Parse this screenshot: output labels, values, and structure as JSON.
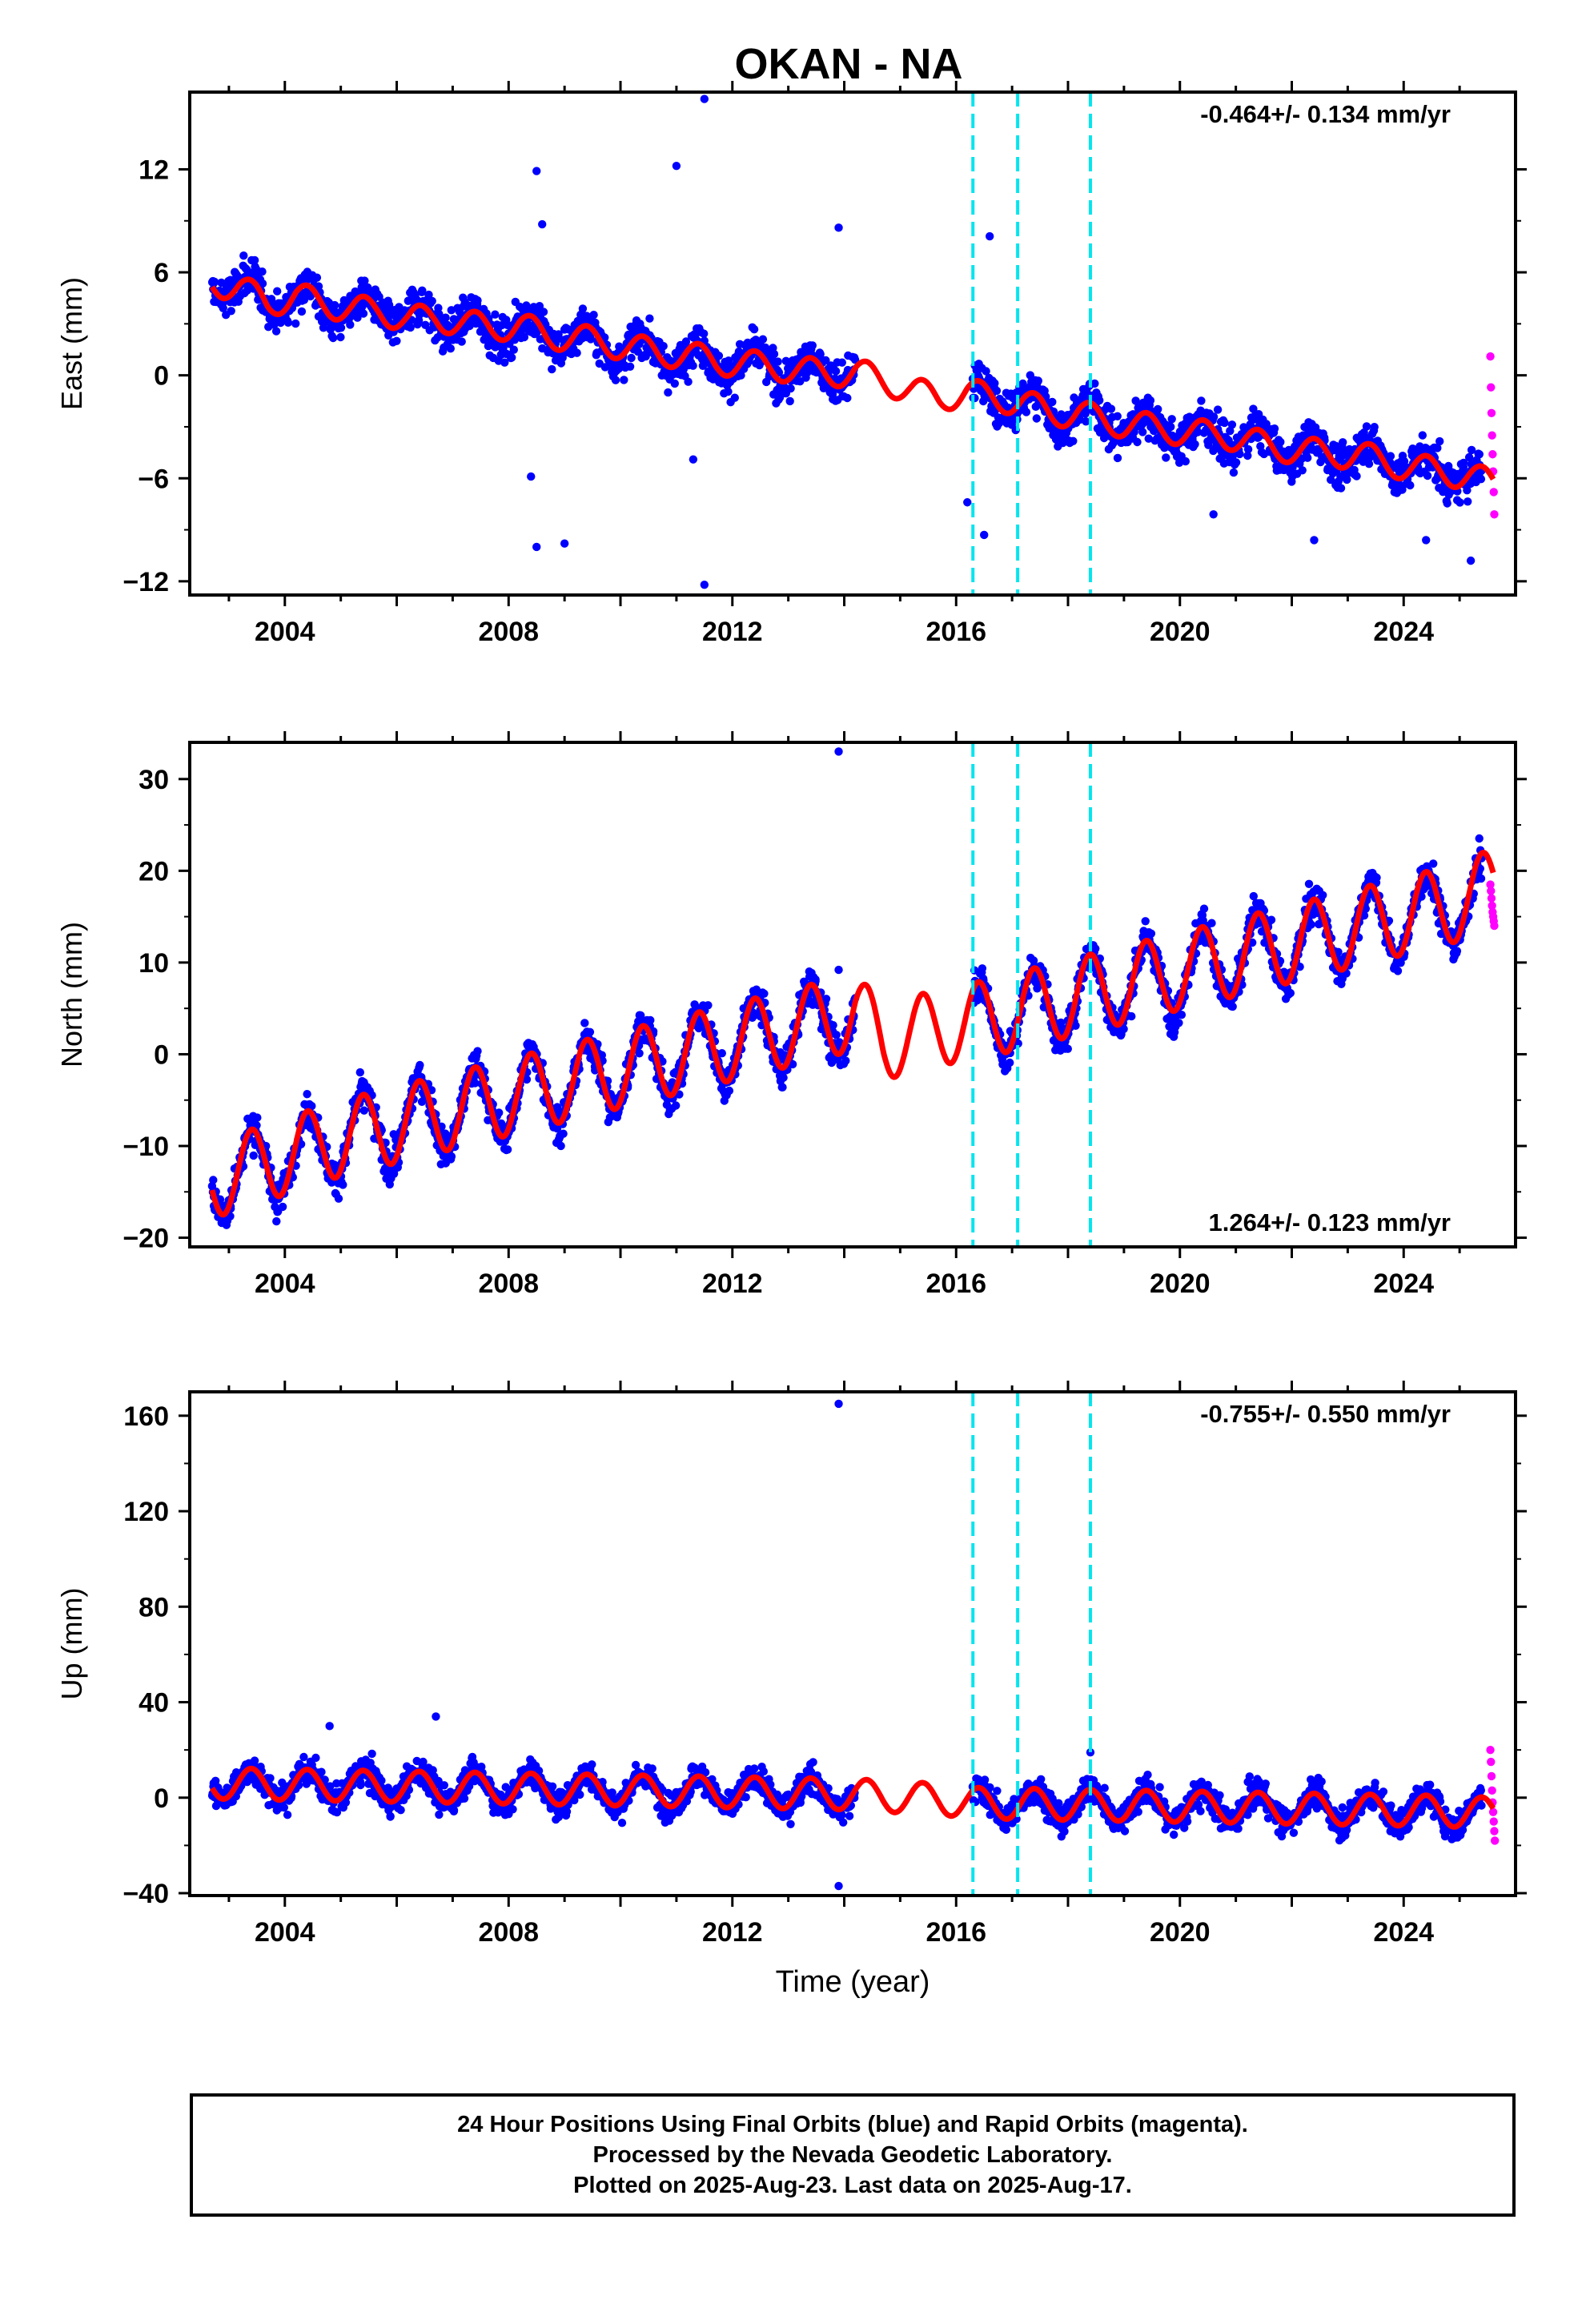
{
  "title": "OKAN - NA",
  "colors": {
    "final": "#0000ff",
    "rapid": "#ff00ff",
    "model": "#ff0000",
    "steps": "#00e5ee"
  },
  "chart_data": [
    {
      "type": "scatter",
      "component": "east",
      "ylabel": "East (mm)",
      "xlabel": "",
      "xlim": [
        2002.3,
        2026.0
      ],
      "ylim": [
        -12.8,
        16.5
      ],
      "yticks": [
        12,
        6,
        0,
        -6,
        -12
      ],
      "yticklabels": [
        "12",
        "6",
        "0",
        "−6",
        "−12"
      ],
      "xticks": [
        2004,
        2008,
        2012,
        2016,
        2020,
        2024
      ],
      "xticklabels": [
        "2004",
        "2008",
        "2012",
        "2016",
        "2020",
        "2024"
      ],
      "rate": "-0.464+/- 0.134 mm/yr",
      "rate_position": "top-right",
      "series": [
        {
          "name": "Final Orbits",
          "color": "#0000ff",
          "segments": [
            {
              "x": [
                2002.7,
                2003.2,
                2003.7,
                2004.2,
                2004.7,
                2005.2,
                2005.7,
                2006.2,
                2006.7,
                2007.2,
                2007.7,
                2008.2,
                2008.7,
                2009.2,
                2009.7,
                2010.2,
                2010.7,
                2011.2,
                2011.7,
                2012.2,
                2012.7,
                2013.2,
                2013.7,
                2014.2
              ],
              "y": [
                5.3,
                5.2,
                4.3,
                4.6,
                4.1,
                3.8,
                3.9,
                3.3,
                3.5,
                3.0,
                2.7,
                2.9,
                2.3,
                2.2,
                1.8,
                1.6,
                1.3,
                1.2,
                0.8,
                0.7,
                0.5,
                0.3,
                0.1,
                0.3
              ],
              "spread": 1.8
            },
            {
              "x": [
                2016.3,
                2016.8,
                2017.3,
                2017.8,
                2018.3,
                2018.8,
                2019.3,
                2019.8,
                2020.3,
                2020.8,
                2021.3,
                2021.8,
                2022.3,
                2022.8,
                2023.3,
                2023.8,
                2024.3,
                2024.8,
                2025.4
              ],
              "y": [
                -1.2,
                -1.3,
                -1.6,
                -2.2,
                -2.2,
                -2.7,
                -2.9,
                -3.1,
                -3.4,
                -3.4,
                -3.8,
                -4.2,
                -4.4,
                -4.6,
                -4.6,
                -5.1,
                -5.4,
                -5.6,
                -5.9
              ],
              "spread": 1.8
            }
          ],
          "outliers": [
            [
              2008.5,
              11.9
            ],
            [
              2008.6,
              8.8
            ],
            [
              2011.0,
              12.2
            ],
            [
              2011.5,
              16.1
            ],
            [
              2008.5,
              -10.0
            ],
            [
              2009.0,
              -9.8
            ],
            [
              2008.4,
              -5.9
            ],
            [
              2011.5,
              -12.2
            ],
            [
              2011.3,
              -4.9
            ],
            [
              2013.9,
              8.6
            ],
            [
              2016.6,
              8.1
            ],
            [
              2016.2,
              -7.4
            ],
            [
              2016.5,
              -9.3
            ],
            [
              2020.6,
              -8.1
            ],
            [
              2022.4,
              -9.6
            ],
            [
              2024.4,
              -9.6
            ],
            [
              2025.2,
              -10.8
            ]
          ]
        },
        {
          "name": "Rapid Orbits",
          "color": "#ff00ff",
          "x": [
            2025.55,
            2025.56,
            2025.57,
            2025.58,
            2025.59,
            2025.6,
            2025.61,
            2025.62
          ],
          "y": [
            1.1,
            -0.7,
            -2.2,
            -3.5,
            -4.6,
            -5.6,
            -6.8,
            -8.1
          ]
        }
      ],
      "model": {
        "x": [
          2002.7,
          2003.2,
          2003.7,
          2004.2,
          2004.7,
          2005.2,
          2005.7,
          2006.2,
          2006.7,
          2007.2,
          2007.7,
          2008.2,
          2008.7,
          2009.2,
          2009.7,
          2010.2,
          2010.7,
          2011.2,
          2011.7,
          2012.2,
          2012.7,
          2013.2,
          2013.7,
          2014.2,
          2014.7,
          2015.2,
          2015.7,
          2016.2,
          2016.7,
          2017.2,
          2017.7,
          2018.2,
          2018.7,
          2019.2,
          2019.7,
          2020.2,
          2020.7,
          2021.2,
          2021.7,
          2022.2,
          2022.7,
          2023.2,
          2023.7,
          2024.2,
          2024.7,
          2025.2,
          2025.6
        ],
        "y": [
          5.4,
          5.1,
          4.2,
          4.6,
          4.2,
          3.8,
          3.8,
          3.2,
          3.4,
          3.0,
          2.8,
          2.9,
          2.3,
          2.2,
          1.9,
          1.6,
          1.3,
          1.2,
          0.8,
          0.7,
          0.5,
          0.3,
          0.1,
          0.2,
          -0.3,
          -0.9,
          -1.3,
          -1.0,
          -1.3,
          -1.6,
          -2.2,
          -2.2,
          -2.7,
          -2.9,
          -3.1,
          -3.4,
          -3.4,
          -3.8,
          -4.2,
          -4.4,
          -4.6,
          -4.6,
          -5.1,
          -5.4,
          -5.6,
          -5.9,
          -6.3
        ],
        "seasonal_amplitude": 0.8
      },
      "steps": [
        2016.3,
        2017.1,
        2018.4
      ]
    },
    {
      "type": "scatter",
      "component": "north",
      "ylabel": "North (mm)",
      "xlabel": "",
      "xlim": [
        2002.3,
        2026.0
      ],
      "ylim": [
        -21,
        34
      ],
      "yticks": [
        30,
        20,
        10,
        0,
        -10,
        -20
      ],
      "yticklabels": [
        "30",
        "20",
        "10",
        "0",
        "−10",
        "−20"
      ],
      "xticks": [
        2004,
        2008,
        2012,
        2016,
        2020,
        2024
      ],
      "xticklabels": [
        "2004",
        "2008",
        "2012",
        "2016",
        "2020",
        "2024"
      ],
      "rate": "1.264+/- 0.123 mm/yr",
      "rate_position": "bottom-right",
      "series": [
        {
          "name": "Final Orbits",
          "color": "#0000ff",
          "segments": [
            {
              "x": [
                2002.7,
                2003.2,
                2003.7,
                2004.2,
                2004.7,
                2005.2,
                2005.7,
                2006.2,
                2006.7,
                2007.2,
                2007.7,
                2008.2,
                2008.7,
                2009.2,
                2009.7,
                2010.2,
                2010.7,
                2011.2,
                2011.7,
                2012.2,
                2012.7,
                2013.2,
                2013.7,
                2014.2
              ],
              "y": [
                -13.5,
                -13.0,
                -11.5,
                -11.0,
                -9.5,
                -9.0,
                -8.0,
                -7.5,
                -6.5,
                -6.0,
                -5.0,
                -4.5,
                -3.5,
                -3.0,
                -2.0,
                -1.5,
                -0.5,
                0.0,
                1.0,
                1.5,
                2.5,
                3.0,
                4.0,
                4.5
              ],
              "spread": 3.0
            },
            {
              "x": [
                2016.3,
                2016.8,
                2017.3,
                2017.8,
                2018.3,
                2018.8,
                2019.3,
                2019.8,
                2020.3,
                2020.8,
                2021.3,
                2021.8,
                2022.3,
                2022.8,
                2023.3,
                2023.8,
                2024.3,
                2024.8,
                2025.4
              ],
              "y": [
                3.5,
                4.0,
                5.0,
                5.5,
                6.5,
                7.0,
                8.0,
                8.5,
                9.5,
                10.0,
                11.0,
                11.5,
                12.5,
                13.0,
                14.0,
                14.5,
                15.5,
                16.0,
                17.0
              ],
              "spread": 3.0
            }
          ],
          "outliers": [
            [
              2013.9,
              33.0
            ],
            [
              2013.9,
              9.2
            ]
          ]
        },
        {
          "name": "Rapid Orbits",
          "color": "#ff00ff",
          "x": [
            2025.55,
            2025.56,
            2025.57,
            2025.58,
            2025.59,
            2025.6,
            2025.61,
            2025.62
          ],
          "y": [
            18.5,
            17.8,
            17.0,
            16.2,
            15.5,
            15.0,
            14.5,
            14.0
          ]
        }
      ],
      "model": {
        "x": [
          2002.7,
          2003.2,
          2003.7,
          2004.2,
          2004.7,
          2005.2,
          2005.7,
          2006.2,
          2006.7,
          2007.2,
          2007.7,
          2008.2,
          2008.7,
          2009.2,
          2009.7,
          2010.2,
          2010.7,
          2011.2,
          2011.7,
          2012.2,
          2012.7,
          2013.2,
          2013.7,
          2014.2,
          2014.7,
          2015.2,
          2015.7,
          2016.2,
          2016.7,
          2017.2,
          2017.7,
          2018.2,
          2018.7,
          2019.2,
          2019.7,
          2020.2,
          2020.7,
          2021.2,
          2021.7,
          2022.2,
          2022.7,
          2023.2,
          2023.7,
          2024.2,
          2024.7,
          2025.2,
          2025.6
        ],
        "y": [
          -13.5,
          -13.0,
          -11.5,
          -11.0,
          -9.5,
          -9.0,
          -8.0,
          -7.5,
          -6.5,
          -6.0,
          -5.0,
          -4.5,
          -3.5,
          -3.0,
          -2.0,
          -1.5,
          -0.5,
          0.0,
          1.0,
          1.5,
          2.5,
          3.0,
          4.0,
          4.5,
          1.5,
          2.0,
          3.0,
          3.5,
          4.0,
          5.0,
          5.5,
          6.5,
          7.0,
          8.0,
          8.5,
          9.5,
          10.0,
          11.0,
          11.5,
          12.5,
          13.0,
          14.0,
          14.5,
          15.5,
          16.0,
          17.0,
          18.5
        ],
        "seasonal_amplitude": 4.2
      },
      "steps": [
        2016.3,
        2017.1,
        2018.4
      ]
    },
    {
      "type": "scatter",
      "component": "up",
      "ylabel": "Up (mm)",
      "xlabel": "Time (year)",
      "xlim": [
        2002.3,
        2026.0
      ],
      "ylim": [
        -41,
        170
      ],
      "yticks": [
        160,
        120,
        80,
        40,
        0,
        -40
      ],
      "yticklabels": [
        "160",
        "120",
        "80",
        "40",
        "0",
        "−40"
      ],
      "xticks": [
        2004,
        2008,
        2012,
        2016,
        2020,
        2024
      ],
      "xticklabels": [
        "2004",
        "2008",
        "2012",
        "2016",
        "2020",
        "2024"
      ],
      "rate": "-0.755+/- 0.550 mm/yr",
      "rate_position": "top-right",
      "series": [
        {
          "name": "Final Orbits",
          "color": "#0000ff",
          "segments": [
            {
              "x": [
                2002.7,
                2003.2,
                2003.7,
                2004.2,
                2004.7,
                2005.2,
                2005.7,
                2006.2,
                2006.7,
                2007.2,
                2007.7,
                2008.2,
                2008.7,
                2009.2,
                2009.7,
                2010.2,
                2010.7,
                2011.2,
                2011.7,
                2012.2,
                2012.7,
                2013.2,
                2013.7,
                2014.2
              ],
              "y": [
                6.0,
                5.8,
                5.6,
                5.4,
                5.2,
                5.0,
                4.8,
                4.6,
                4.4,
                4.2,
                4.0,
                3.8,
                3.6,
                3.4,
                3.2,
                3.0,
                2.8,
                2.6,
                2.4,
                2.2,
                2.0,
                1.8,
                1.6,
                1.4
              ],
              "spread": 9.0
            },
            {
              "x": [
                2016.3,
                2016.8,
                2017.3,
                2017.8,
                2018.3,
                2018.8,
                2019.3,
                2019.8,
                2020.3,
                2020.8,
                2021.3,
                2021.8,
                2022.3,
                2022.8,
                2023.3,
                2023.8,
                2024.3,
                2024.8,
                2025.4
              ],
              "y": [
                -2.2,
                -2.4,
                -2.6,
                -2.8,
                -3.0,
                -3.2,
                -3.4,
                -3.6,
                -3.8,
                -4.0,
                -4.2,
                -4.4,
                -4.6,
                -4.8,
                -5.0,
                -5.2,
                -5.4,
                -5.6,
                -6.0
              ],
              "spread": 9.0
            }
          ],
          "outliers": [
            [
              2013.9,
              165.0
            ],
            [
              2013.9,
              -37.0
            ],
            [
              2006.7,
              34.0
            ],
            [
              2004.8,
              30.0
            ],
            [
              2018.4,
              19.0
            ]
          ]
        },
        {
          "name": "Rapid Orbits",
          "color": "#ff00ff",
          "x": [
            2025.55,
            2025.56,
            2025.57,
            2025.58,
            2025.59,
            2025.6,
            2025.61,
            2025.62,
            2025.63
          ],
          "y": [
            20.0,
            15.0,
            9.0,
            3.0,
            -2.0,
            -6.0,
            -10.0,
            -14.0,
            -18.0
          ]
        }
      ],
      "model": {
        "x": [
          2002.7,
          2003.2,
          2003.7,
          2004.2,
          2004.7,
          2005.2,
          2005.7,
          2006.2,
          2006.7,
          2007.2,
          2007.7,
          2008.2,
          2008.7,
          2009.2,
          2009.7,
          2010.2,
          2010.7,
          2011.2,
          2011.7,
          2012.2,
          2012.7,
          2013.2,
          2013.7,
          2014.2,
          2014.7,
          2015.2,
          2015.7,
          2016.2,
          2016.7,
          2017.2,
          2017.7,
          2018.2,
          2018.7,
          2019.2,
          2019.7,
          2020.2,
          2020.7,
          2021.2,
          2021.7,
          2022.2,
          2022.7,
          2023.2,
          2023.7,
          2024.2,
          2024.7,
          2025.2,
          2025.6
        ],
        "y": [
          6.0,
          5.8,
          5.6,
          5.4,
          5.2,
          5.0,
          4.8,
          4.6,
          4.4,
          4.2,
          4.0,
          3.8,
          3.6,
          3.4,
          3.2,
          3.0,
          2.8,
          2.6,
          2.4,
          2.2,
          2.0,
          1.8,
          1.6,
          1.4,
          0.5,
          0.0,
          -0.5,
          -2.2,
          -2.4,
          -2.6,
          -2.8,
          -3.0,
          -3.2,
          -3.4,
          -3.6,
          -3.8,
          -4.0,
          -4.2,
          -4.4,
          -4.6,
          -4.8,
          -5.0,
          -5.2,
          -5.4,
          -5.6,
          -6.0,
          -6.5
        ],
        "seasonal_amplitude": 6.5
      },
      "steps": [
        2016.3,
        2017.1,
        2018.4
      ]
    }
  ],
  "footer": {
    "line1": "24 Hour Positions Using Final Orbits (blue) and Rapid Orbits (magenta).",
    "line2": "Processed by the Nevada Geodetic Laboratory.",
    "line3": "Plotted on 2025-Aug-23. Last data on 2025-Aug-17."
  }
}
